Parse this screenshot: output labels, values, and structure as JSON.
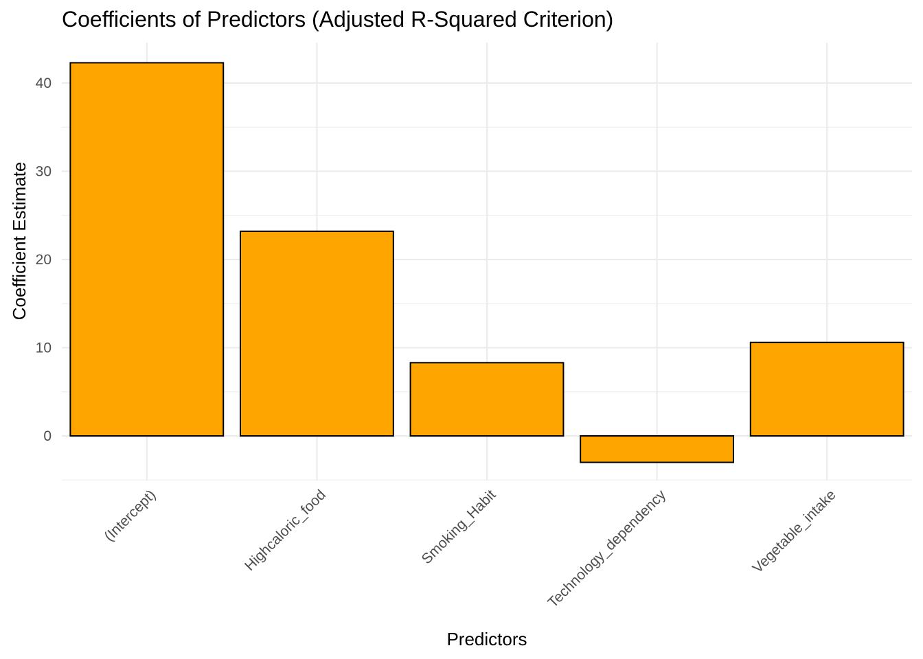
{
  "chart_data": {
    "type": "bar",
    "title": "Coefficients of Predictors (Adjusted R-Squared Criterion)",
    "xlabel": "Predictors",
    "ylabel": "Coefficient Estimate",
    "categories": [
      "(Intercept)",
      "Highcaloric_food",
      "Smoking_Habit",
      "Technology_dependency",
      "Vegetable_intake"
    ],
    "values": [
      42.3,
      23.2,
      8.3,
      -3.0,
      10.6
    ],
    "ylim": [
      -5,
      44.5
    ],
    "yticks": [
      0,
      10,
      20,
      30,
      40
    ],
    "grid": true,
    "legend": "none",
    "bar_color": "#FFA500",
    "bar_border_color": "#000000",
    "grid_color": "#EBEBEB"
  }
}
